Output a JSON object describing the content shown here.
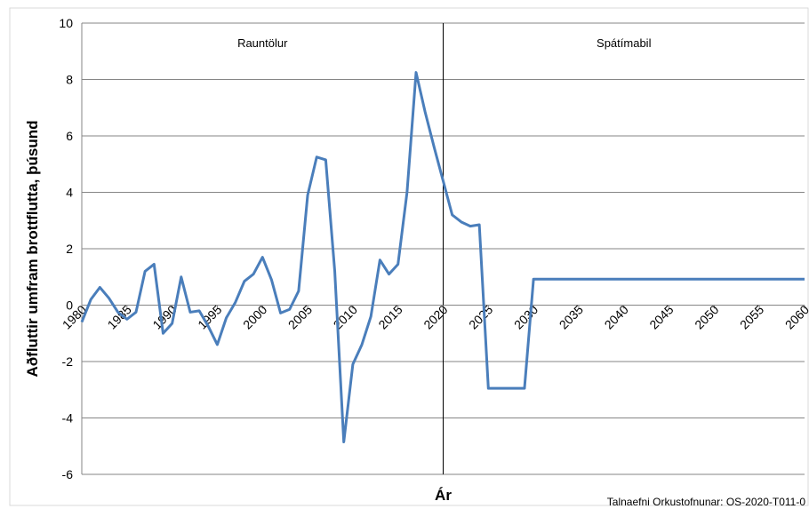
{
  "chart_data": {
    "type": "line",
    "xlabel": "Ár",
    "ylabel": "Aðfluttir umfram brottflutta, þúsund",
    "ylim": [
      -6,
      10
    ],
    "yticks": [
      -6,
      -4,
      -2,
      0,
      2,
      4,
      6,
      8,
      10
    ],
    "xlim": [
      1980,
      2060
    ],
    "xticks": [
      1980,
      1985,
      1990,
      1995,
      2000,
      2005,
      2010,
      2015,
      2020,
      2025,
      2030,
      2035,
      2040,
      2045,
      2050,
      2055,
      2060
    ],
    "grid": "horizontal",
    "divider_year": 2020,
    "regions": {
      "left_label": "Rauntölur",
      "right_label": "Spátímabil"
    },
    "source": "Talnaefni Orkustofnunar: OS-2020-T011-0",
    "line_color": "#4a7ebb",
    "series": [
      {
        "x": [
          1980,
          1981,
          1982,
          1983,
          1984,
          1985,
          1986,
          1987,
          1988,
          1989,
          1990,
          1991,
          1992,
          1993,
          1994,
          1995,
          1996,
          1997,
          1998,
          1999,
          2000,
          2001,
          2002,
          2003,
          2004,
          2005,
          2006,
          2007,
          2008,
          2009,
          2010,
          2011,
          2012,
          2013,
          2014,
          2015,
          2016,
          2017,
          2018,
          2019,
          2020,
          2021,
          2022,
          2023,
          2024,
          2025,
          2026,
          2027,
          2028,
          2029,
          2030,
          2031,
          2032,
          2033,
          2034,
          2035,
          2036,
          2037,
          2038,
          2039,
          2040,
          2041,
          2042,
          2043,
          2044,
          2045,
          2046,
          2047,
          2048,
          2049,
          2050,
          2051,
          2052,
          2053,
          2054,
          2055,
          2056,
          2057,
          2058,
          2059,
          2060
        ],
        "y": [
          -0.6,
          0.2,
          0.63,
          0.25,
          -0.25,
          -0.5,
          -0.25,
          1.2,
          1.45,
          -1.0,
          -0.65,
          1.0,
          -0.25,
          -0.2,
          -0.75,
          -1.4,
          -0.45,
          0.1,
          0.85,
          1.1,
          1.7,
          0.9,
          -0.28,
          -0.15,
          0.5,
          3.9,
          5.25,
          5.15,
          1.2,
          -4.85,
          -2.1,
          -1.4,
          -0.4,
          1.6,
          1.1,
          1.45,
          4.0,
          8.25,
          6.85,
          5.6,
          4.4,
          3.2,
          2.95,
          2.8,
          2.85,
          -2.95,
          -2.95,
          -2.95,
          -2.95,
          -2.95,
          0.92,
          0.92,
          0.92,
          0.92,
          0.92,
          0.92,
          0.92,
          0.92,
          0.92,
          0.92,
          0.92,
          0.92,
          0.92,
          0.92,
          0.92,
          0.92,
          0.92,
          0.92,
          0.92,
          0.92,
          0.92,
          0.92,
          0.92,
          0.92,
          0.92,
          0.92,
          0.92,
          0.92,
          0.92,
          0.92,
          0.92
        ]
      }
    ]
  }
}
